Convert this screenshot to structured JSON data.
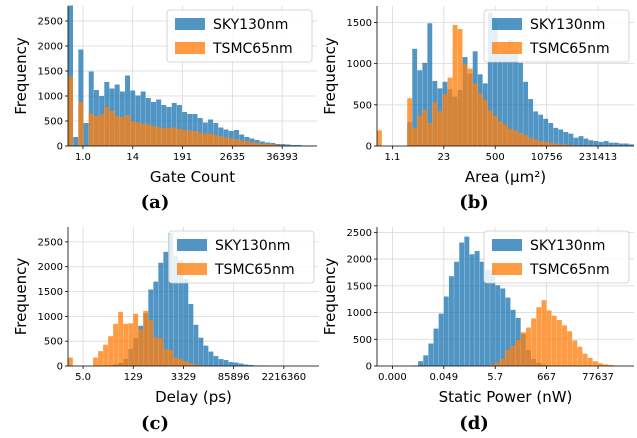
{
  "colors": {
    "sky": "#1f77b4",
    "tsmc": "#ff7f0e",
    "grid": "#d9d9d9",
    "axis": "#000000"
  },
  "chart_data": [
    {
      "type": "bar",
      "panel": "(a)",
      "xlabel": "Gate Count",
      "ylabel": "Frequency",
      "legend_position": "top-right",
      "grid": true,
      "xscale": "log",
      "ylim": [
        0,
        2800
      ],
      "yticks": [
        0,
        500,
        1000,
        1500,
        2000,
        2500
      ],
      "xtick_labels": [
        "1.0",
        "14",
        "191",
        "2635",
        "36393"
      ],
      "series": [
        {
          "name": "SKY130nm",
          "values": [
            2810,
            180,
            1930,
            460,
            1490,
            1120,
            1000,
            1280,
            1150,
            1230,
            1090,
            1410,
            1110,
            1010,
            1090,
            960,
            880,
            930,
            820,
            780,
            860,
            820,
            680,
            640,
            640,
            560,
            470,
            530,
            460,
            370,
            330,
            300,
            320,
            230,
            180,
            150,
            120,
            90,
            70,
            60,
            40,
            40,
            30,
            20,
            20,
            10,
            10,
            10
          ]
        },
        {
          "name": "TSMC65nm",
          "values": [
            1390,
            0,
            880,
            0,
            650,
            600,
            630,
            780,
            700,
            600,
            580,
            620,
            500,
            470,
            450,
            430,
            400,
            380,
            360,
            360,
            370,
            340,
            320,
            310,
            300,
            270,
            250,
            250,
            220,
            190,
            170,
            150,
            140,
            110,
            90,
            80,
            60,
            50,
            40,
            30,
            20,
            20,
            10,
            10,
            10,
            0,
            0,
            0
          ]
        }
      ]
    },
    {
      "type": "bar",
      "panel": "(b)",
      "xlabel": "Area (μm²)",
      "ylabel": "Frequency",
      "legend_position": "top-right",
      "grid": true,
      "xscale": "log",
      "ylim": [
        0,
        1700
      ],
      "yticks": [
        0,
        500,
        1000,
        1500
      ],
      "xtick_labels": [
        "1.1",
        "23",
        "500",
        "10756",
        "231413"
      ],
      "series": [
        {
          "name": "SKY130nm",
          "values": [
            0,
            0,
            0,
            0,
            0,
            0,
            290,
            1180,
            920,
            1010,
            1490,
            790,
            700,
            780,
            690,
            600,
            680,
            1080,
            880,
            1150,
            870,
            760,
            1620,
            1530,
            1130,
            1170,
            1290,
            1130,
            1010,
            780,
            570,
            420,
            380,
            330,
            280,
            220,
            200,
            170,
            150,
            100,
            120,
            90,
            70,
            60,
            50,
            60,
            40,
            40,
            30,
            30,
            20
          ]
        },
        {
          "name": "TSMC65nm",
          "values": [
            190,
            0,
            0,
            0,
            0,
            0,
            580,
            220,
            370,
            440,
            280,
            530,
            420,
            630,
            830,
            1470,
            1420,
            1000,
            940,
            760,
            640,
            560,
            430,
            370,
            300,
            260,
            210,
            190,
            160,
            130,
            100,
            80,
            60,
            50,
            40,
            30,
            20,
            20,
            10,
            10,
            0,
            0,
            0,
            0,
            0,
            0,
            0,
            0,
            0,
            0,
            0
          ]
        }
      ]
    },
    {
      "type": "bar",
      "panel": "(c)",
      "xlabel": "Delay (ps)",
      "ylabel": "Frequency",
      "legend_position": "top-right",
      "grid": true,
      "xscale": "log",
      "ylim": [
        0,
        2800
      ],
      "yticks": [
        0,
        500,
        1000,
        1500,
        2000,
        2500
      ],
      "xtick_labels": [
        "5.0",
        "129",
        "3329",
        "85896",
        "2216360"
      ],
      "series": [
        {
          "name": "SKY130nm",
          "values": [
            0,
            0,
            0,
            0,
            0,
            0,
            0,
            0,
            10,
            30,
            60,
            140,
            340,
            560,
            810,
            1060,
            1540,
            1700,
            2080,
            2300,
            2680,
            2220,
            2130,
            1750,
            1250,
            830,
            570,
            410,
            290,
            200,
            140,
            120,
            80,
            70,
            50,
            30,
            20,
            10,
            10,
            10,
            0,
            0,
            0,
            0,
            0,
            0,
            0,
            0,
            0,
            0
          ]
        },
        {
          "name": "TSMC65nm",
          "values": [
            170,
            0,
            0,
            0,
            0,
            170,
            300,
            430,
            600,
            850,
            1090,
            850,
            860,
            1050,
            740,
            1110,
            920,
            580,
            560,
            340,
            320,
            170,
            140,
            90,
            60,
            30,
            20,
            10,
            10,
            0,
            0,
            0,
            0,
            0,
            0,
            0,
            0,
            0,
            0,
            0,
            0,
            0,
            0,
            0,
            0,
            0,
            0,
            0,
            0,
            0
          ]
        }
      ]
    },
    {
      "type": "bar",
      "panel": "(d)",
      "xlabel": "Static Power (nW)",
      "ylabel": "Frequency",
      "legend_position": "top-right",
      "grid": true,
      "xscale": "log",
      "ylim": [
        0,
        2600
      ],
      "yticks": [
        0,
        500,
        1000,
        1500,
        2000,
        2500
      ],
      "xtick_labels": [
        "0.000",
        "0.049",
        "5.7",
        "667",
        "77637"
      ],
      "series": [
        {
          "name": "SKY130nm",
          "values": [
            0,
            0,
            0,
            0,
            0,
            0,
            0,
            10,
            90,
            200,
            420,
            700,
            980,
            1300,
            1680,
            1950,
            2310,
            2420,
            2090,
            2150,
            1950,
            1800,
            1790,
            1510,
            1450,
            1280,
            1050,
            900,
            600,
            300,
            130,
            60,
            30,
            10,
            0,
            0,
            0,
            0,
            0,
            0,
            0,
            0,
            0,
            0,
            0,
            0,
            0,
            0,
            0,
            0
          ]
        },
        {
          "name": "TSMC65nm",
          "values": [
            0,
            0,
            0,
            0,
            0,
            0,
            0,
            0,
            0,
            0,
            0,
            0,
            0,
            0,
            0,
            0,
            0,
            0,
            0,
            0,
            0,
            10,
            30,
            60,
            140,
            300,
            380,
            490,
            630,
            720,
            890,
            1100,
            1230,
            1040,
            940,
            860,
            760,
            650,
            480,
            360,
            230,
            150,
            90,
            50,
            30,
            20,
            10,
            0,
            0,
            0
          ]
        }
      ]
    }
  ]
}
